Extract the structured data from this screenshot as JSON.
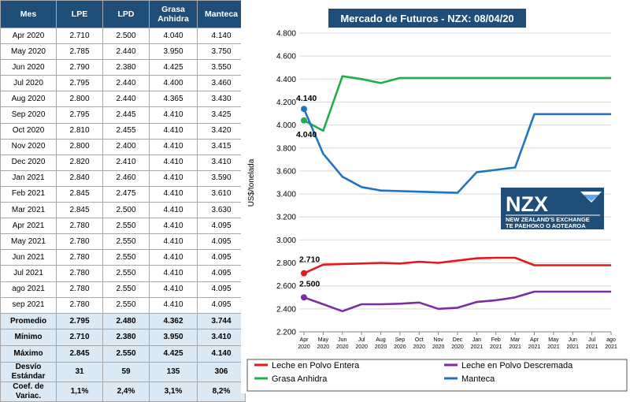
{
  "table": {
    "headers": [
      "Mes",
      "LPE",
      "LPD",
      "Grasa Anhidra",
      "Manteca"
    ],
    "rows": [
      [
        "Apr 2020",
        "2.710",
        "2.500",
        "4.040",
        "4.140"
      ],
      [
        "May 2020",
        "2.785",
        "2.440",
        "3.950",
        "3.750"
      ],
      [
        "Jun 2020",
        "2.790",
        "2.380",
        "4.425",
        "3.550"
      ],
      [
        "Jul 2020",
        "2.795",
        "2.440",
        "4.400",
        "3.460"
      ],
      [
        "Aug 2020",
        "2.800",
        "2.440",
        "4.365",
        "3.430"
      ],
      [
        "Sep 2020",
        "2.795",
        "2.445",
        "4.410",
        "3.425"
      ],
      [
        "Oct 2020",
        "2.810",
        "2.455",
        "4.410",
        "3.420"
      ],
      [
        "Nov 2020",
        "2.800",
        "2.400",
        "4.410",
        "3.415"
      ],
      [
        "Dec 2020",
        "2.820",
        "2.410",
        "4.410",
        "3.410"
      ],
      [
        "Jan 2021",
        "2.840",
        "2.460",
        "4.410",
        "3.590"
      ],
      [
        "Feb 2021",
        "2.845",
        "2.475",
        "4.410",
        "3.610"
      ],
      [
        "Mar 2021",
        "2.845",
        "2.500",
        "4.410",
        "3.630"
      ],
      [
        "Apr 2021",
        "2.780",
        "2.550",
        "4.410",
        "4.095"
      ],
      [
        "May 2021",
        "2.780",
        "2.550",
        "4.410",
        "4.095"
      ],
      [
        "Jun 2021",
        "2.780",
        "2.550",
        "4.410",
        "4.095"
      ],
      [
        "Jul 2021",
        "2.780",
        "2.550",
        "4.410",
        "4.095"
      ],
      [
        "ago 2021",
        "2.780",
        "2.550",
        "4.410",
        "4.095"
      ],
      [
        "sep 2021",
        "2.780",
        "2.550",
        "4.410",
        "4.095"
      ]
    ],
    "summary": [
      [
        "Promedio",
        "2.795",
        "2.480",
        "4.362",
        "3.744"
      ],
      [
        "Mínimo",
        "2.710",
        "2.380",
        "3.950",
        "3.410"
      ],
      [
        "Máximo",
        "2.845",
        "2.550",
        "4.425",
        "4.140"
      ],
      [
        "Desvío Estándar",
        "31",
        "59",
        "135",
        "306"
      ],
      [
        "Coef. de Variac.",
        "1,1%",
        "2,4%",
        "3,1%",
        "8,2%"
      ]
    ]
  },
  "chart_data": {
    "type": "line",
    "title": "Mercado de Futuros - NZX: 08/04/20",
    "ylabel": "US$/tonelada",
    "xlabel": "",
    "ylim": [
      2200,
      4800
    ],
    "yticks": [
      "2.200",
      "2.400",
      "2.600",
      "2.800",
      "3.000",
      "3.200",
      "3.400",
      "3.600",
      "3.800",
      "4.000",
      "4.200",
      "4.400",
      "4.600",
      "4.800"
    ],
    "x": [
      [
        "Apr",
        "2020"
      ],
      [
        "May",
        "2020"
      ],
      [
        "Jun",
        "2020"
      ],
      [
        "Jul",
        "2020"
      ],
      [
        "Aug",
        "2020"
      ],
      [
        "Sep",
        "2020"
      ],
      [
        "Oct",
        "2020"
      ],
      [
        "Nov",
        "2020"
      ],
      [
        "Dec",
        "2020"
      ],
      [
        "Jan",
        "2021"
      ],
      [
        "Feb",
        "2021"
      ],
      [
        "Mar",
        "2021"
      ],
      [
        "Apr",
        "2021"
      ],
      [
        "May",
        "2021"
      ],
      [
        "Jun",
        "2021"
      ],
      [
        "Jul",
        "2021"
      ],
      [
        "ago",
        "2021"
      ]
    ],
    "series": [
      {
        "name": "Leche en Polvo Entera",
        "color": "#e8171c",
        "values": [
          2710,
          2785,
          2790,
          2795,
          2800,
          2795,
          2810,
          2800,
          2820,
          2840,
          2845,
          2845,
          2780,
          2780,
          2780,
          2780,
          2780
        ],
        "label": "2.710"
      },
      {
        "name": "Leche en Polvo Descremada",
        "color": "#7b2ea0",
        "values": [
          2500,
          2440,
          2380,
          2440,
          2440,
          2445,
          2455,
          2400,
          2410,
          2460,
          2475,
          2500,
          2550,
          2550,
          2550,
          2550,
          2550
        ],
        "label": "2.500"
      },
      {
        "name": "Grasa Anhidra",
        "color": "#1fae4a",
        "values": [
          4040,
          3950,
          4425,
          4400,
          4365,
          4410,
          4410,
          4410,
          4410,
          4410,
          4410,
          4410,
          4410,
          4410,
          4410,
          4410,
          4410
        ],
        "label": "4.040"
      },
      {
        "name": "Manteca",
        "color": "#1f74c4",
        "values": [
          4140,
          3750,
          3550,
          3460,
          3430,
          3425,
          3420,
          3415,
          3410,
          3590,
          3610,
          3630,
          4095,
          4095,
          4095,
          4095,
          4095
        ],
        "label": "4.140"
      }
    ],
    "legend": [
      "Leche en Polvo Entera",
      "Leche en Polvo Descremada",
      "Grasa Anhidra",
      "Manteca"
    ],
    "logo": {
      "big": "NZX",
      "line1": "NEW ZEALAND'S EXCHANGE",
      "line2": "TE PAEHOKO O AOTEAROA"
    }
  }
}
